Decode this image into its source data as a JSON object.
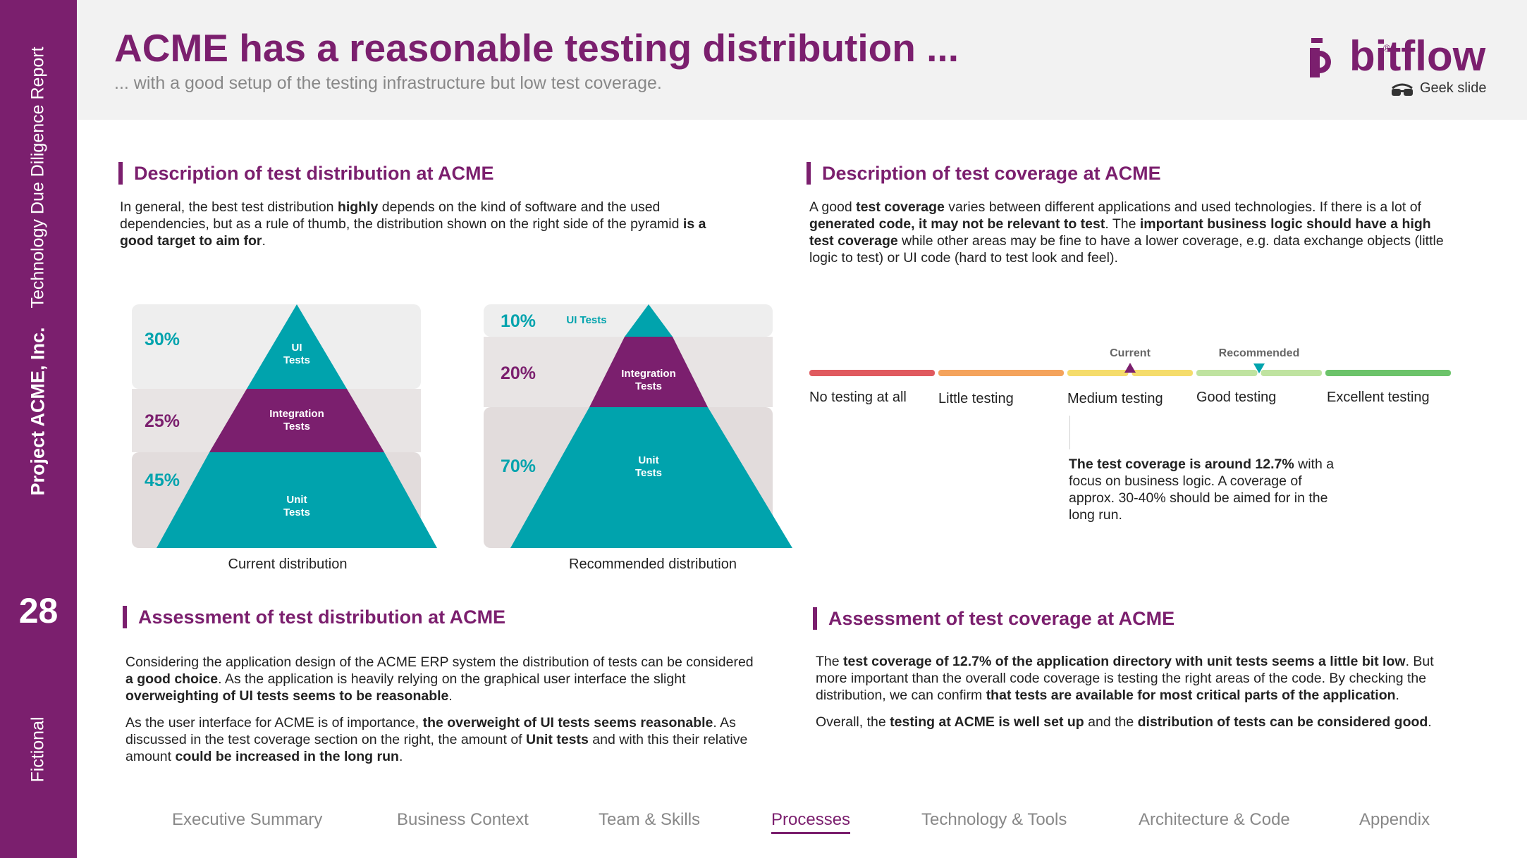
{
  "sidebar": {
    "report": "Technology Due Diligence Report",
    "project": "Project ACME, Inc.",
    "page_number": "28",
    "confidentiality": "Fictional"
  },
  "header": {
    "title": "ACME has a reasonable testing distribution ...",
    "subtitle": "... with a good setup of the testing infrastructure but low test coverage.",
    "logo_text": "bitflow",
    "logo_reg": "®",
    "geek_label": "Geek slide"
  },
  "colors": {
    "brand": "#7b1f6e",
    "teal": "#00a3ad",
    "panel_light": "#eeeeee",
    "panel_mid": "#e2dcdc"
  },
  "distribution": {
    "heading": "Description of test distribution at ACME",
    "intro": [
      {
        "t": "In general, the best test distribution ",
        "b": false
      },
      {
        "t": "highly",
        "b": true
      },
      {
        "t": " depends on the kind of software and the used dependencies, but as a rule of thumb, the distribution shown on the right side of the pyramid ",
        "b": false
      },
      {
        "t": "is a good target to aim for",
        "b": true
      },
      {
        "t": ".",
        "b": false
      }
    ],
    "current": {
      "caption": "Current distribution",
      "pct_ui": "30%",
      "pct_integration": "25%",
      "pct_unit": "45%",
      "label_ui_1": "UI",
      "label_ui_2": "Tests",
      "label_int_1": "Integration",
      "label_int_2": "Tests",
      "label_unit_1": "Unit",
      "label_unit_2": "Tests"
    },
    "recommended": {
      "caption": "Recommended distribution",
      "pct_ui": "10%",
      "pct_integration": "20%",
      "pct_unit": "70%",
      "label_ui": "UI Tests",
      "label_int_1": "Integration",
      "label_int_2": "Tests",
      "label_unit_1": "Unit",
      "label_unit_2": "Tests"
    }
  },
  "coverage": {
    "heading": "Description of test coverage at ACME",
    "intro": [
      {
        "t": "A good ",
        "b": false
      },
      {
        "t": "test coverage",
        "b": true
      },
      {
        "t": " varies between different applications and used technologies. If there is a lot of ",
        "b": false
      },
      {
        "t": "generated code, it may not be relevant to test",
        "b": true
      },
      {
        "t": ". The ",
        "b": false
      },
      {
        "t": "important business logic should have a high test coverage",
        "b": true
      },
      {
        "t": " while other areas may be fine to have a lower coverage, e.g. data exchange objects (little logic to test) or UI code (hard to test look and feel).",
        "b": false
      }
    ],
    "scale": {
      "levels": [
        "No testing at all",
        "Little testing",
        "Medium testing",
        "Good testing",
        "Excellent testing"
      ],
      "level_colors": [
        "#e05a5f",
        "#f4a35c",
        "#f5dc6b",
        "#bfe3a0",
        "#6cc36a"
      ],
      "marker_current": "Current",
      "marker_recommended": "Recommended",
      "current_value": 2.5,
      "recommended_value": 3.5
    },
    "note": [
      {
        "t": "The test coverage is around 12.7%",
        "b": true
      },
      {
        "t": " with a focus on business logic. A coverage of approx. 30-40% should be aimed for in the long run.",
        "b": false
      }
    ]
  },
  "assessment_distribution": {
    "heading": "Assessment of test distribution at ACME",
    "p1": [
      {
        "t": "Considering the application design of the ACME ERP system the distribution of tests can be considered ",
        "b": false
      },
      {
        "t": "a good choice",
        "b": true
      },
      {
        "t": ". As the application is heavily relying on the graphical user interface the slight ",
        "b": false
      },
      {
        "t": "overweighting of UI tests seems to be reasonable",
        "b": true
      },
      {
        "t": ".",
        "b": false
      }
    ],
    "p2": [
      {
        "t": "As the user interface for ACME is of importance, ",
        "b": false
      },
      {
        "t": "the overweight of UI tests seems reasonable",
        "b": true
      },
      {
        "t": ". As discussed in the test coverage section on the right, the amount of ",
        "b": false
      },
      {
        "t": "Unit tests",
        "b": true
      },
      {
        "t": " and with this their relative amount ",
        "b": false
      },
      {
        "t": "could be increased in the long run",
        "b": true
      },
      {
        "t": ".",
        "b": false
      }
    ]
  },
  "assessment_coverage": {
    "heading": "Assessment of test coverage at ACME",
    "p1": [
      {
        "t": "The ",
        "b": false
      },
      {
        "t": "test coverage of 12.7% of the application directory with unit tests seems a little bit low",
        "b": true
      },
      {
        "t": ". But more important than the overall code coverage is testing the right areas of the code. By checking the distribution, we can confirm ",
        "b": false
      },
      {
        "t": "that tests are available for most critical parts of the application",
        "b": true
      },
      {
        "t": ".",
        "b": false
      }
    ],
    "p2": [
      {
        "t": "Overall, the ",
        "b": false
      },
      {
        "t": "testing at ACME is well set up",
        "b": true
      },
      {
        "t": " and the ",
        "b": false
      },
      {
        "t": "distribution of tests can be considered good",
        "b": true
      },
      {
        "t": ".",
        "b": false
      }
    ]
  },
  "nav": {
    "items": [
      "Executive Summary",
      "Business Context",
      "Team & Skills",
      "Processes",
      "Technology & Tools",
      "Architecture & Code",
      "Appendix"
    ],
    "active": "Processes"
  }
}
